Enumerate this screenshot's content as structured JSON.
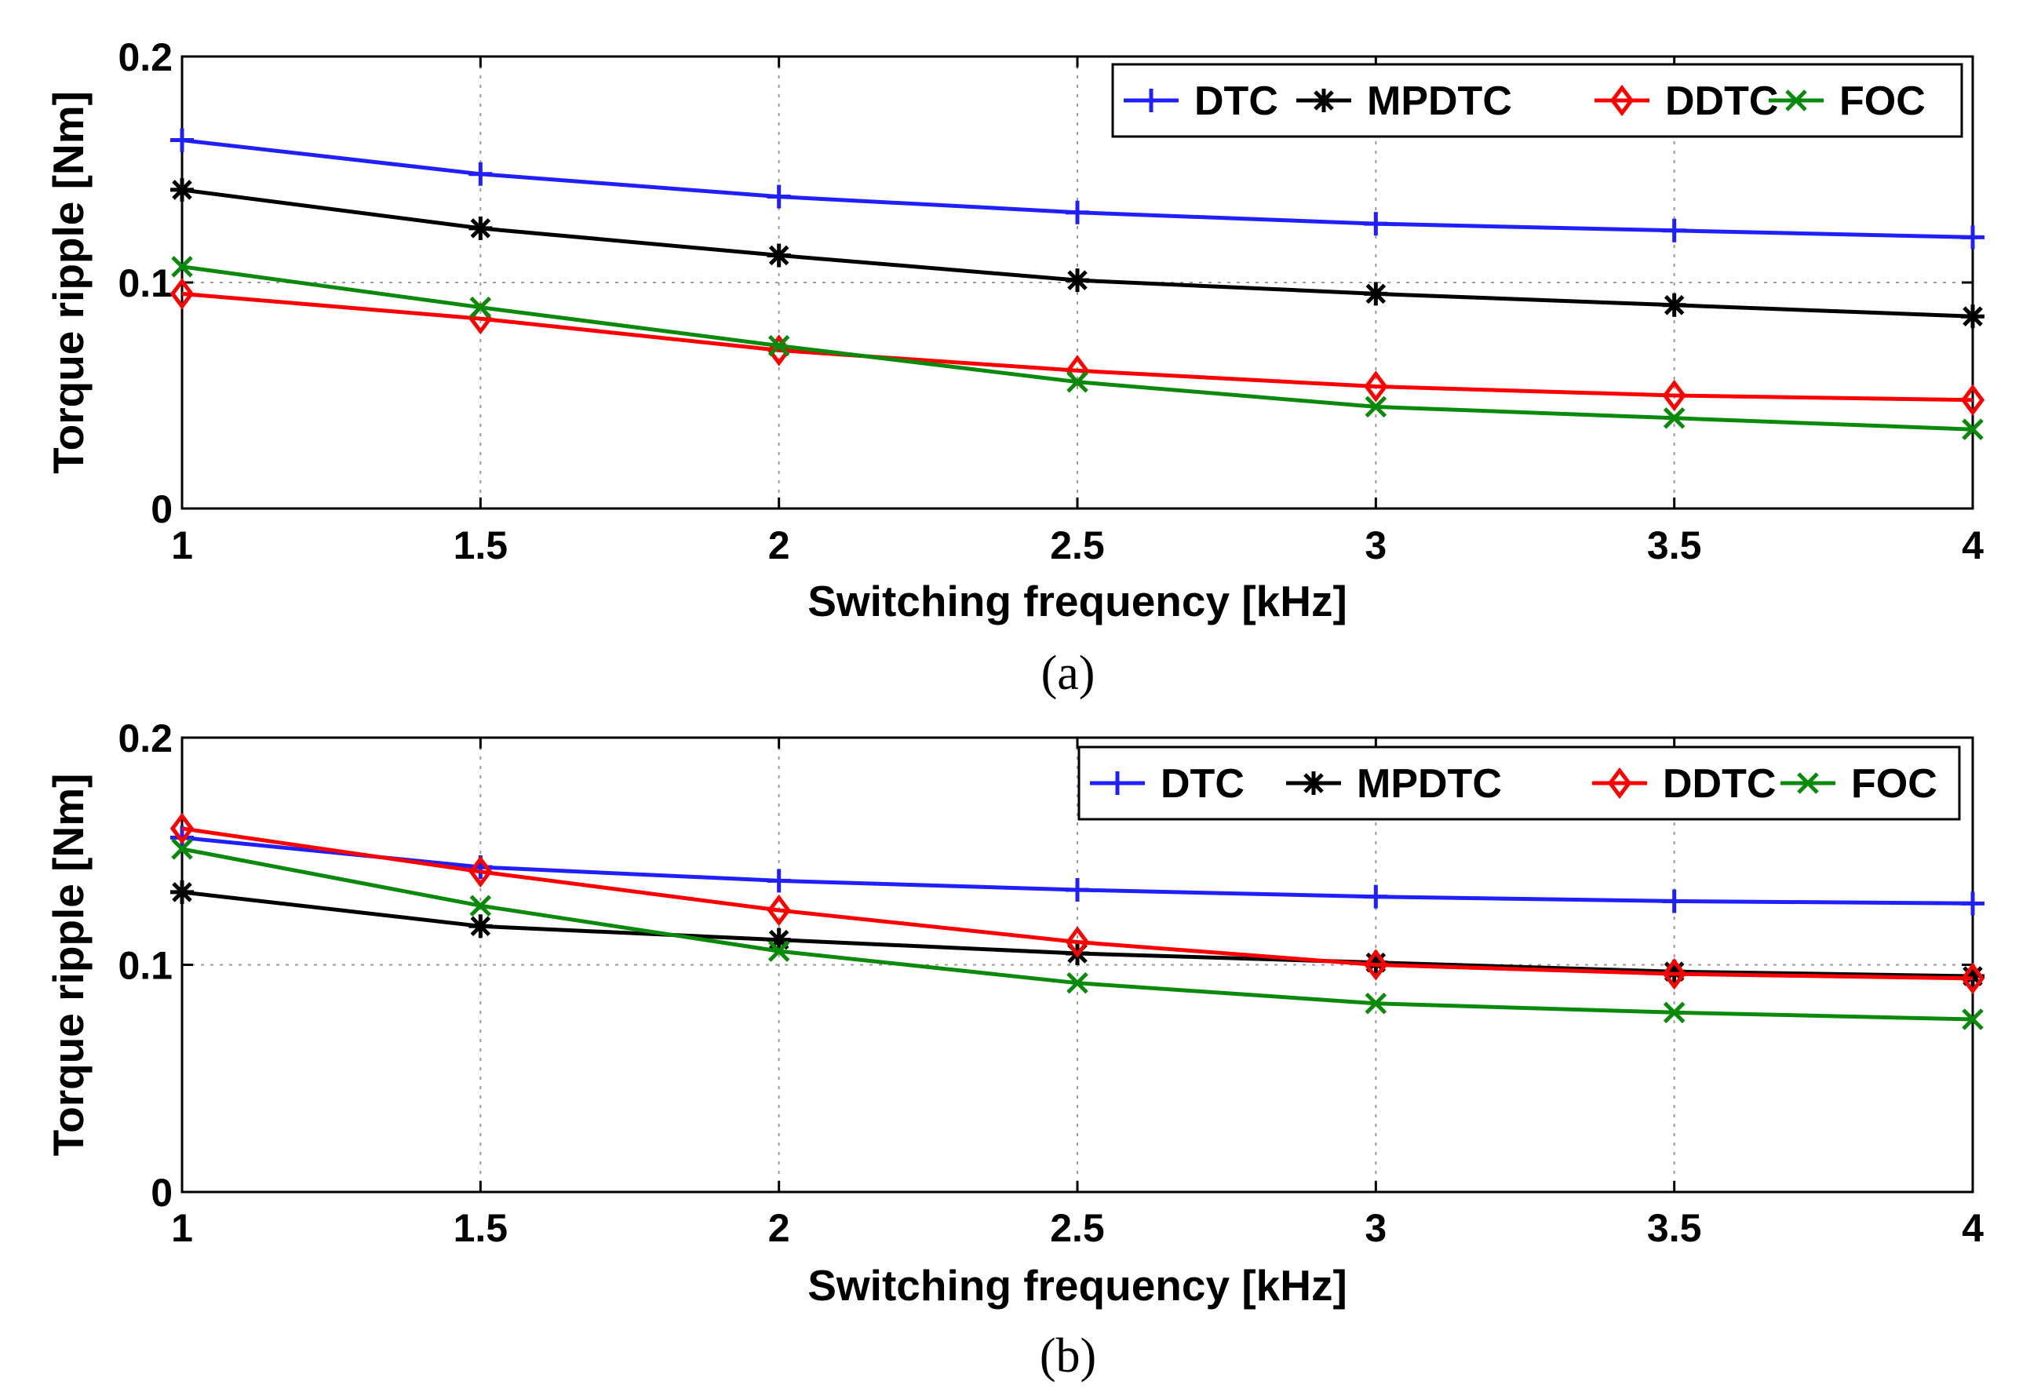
{
  "chart_data": [
    {
      "id": "a",
      "type": "line",
      "caption": "(a)",
      "xlabel": "Switching frequency [kHz]",
      "ylabel": "Torque ripple [Nm]",
      "x": [
        1,
        1.5,
        2,
        2.5,
        3,
        3.5,
        4
      ],
      "x_tick_labels": [
        "1",
        "1.5",
        "2",
        "2.5",
        "3",
        "3.5",
        "4"
      ],
      "y_ticks": [
        0,
        0.1,
        0.2
      ],
      "y_tick_labels": [
        "0",
        "0.1",
        "0.2"
      ],
      "xlim": [
        1,
        4
      ],
      "ylim": [
        0,
        0.2
      ],
      "grid": true,
      "legend_position": "top-right",
      "series": [
        {
          "name": "DTC",
          "color": "#1f1fff",
          "marker": "plus",
          "values": [
            0.163,
            0.148,
            0.138,
            0.131,
            0.126,
            0.123,
            0.12
          ]
        },
        {
          "name": "MPDTC",
          "color": "#000000",
          "marker": "star",
          "values": [
            0.141,
            0.124,
            0.112,
            0.101,
            0.095,
            0.09,
            0.085
          ]
        },
        {
          "name": "DDTC",
          "color": "#ff0000",
          "marker": "diamond",
          "values": [
            0.095,
            0.084,
            0.07,
            0.061,
            0.054,
            0.05,
            0.048
          ]
        },
        {
          "name": "FOC",
          "color": "#0a8a0a",
          "marker": "x",
          "values": [
            0.107,
            0.089,
            0.072,
            0.056,
            0.045,
            0.04,
            0.035
          ]
        }
      ]
    },
    {
      "id": "b",
      "type": "line",
      "caption": "(b)",
      "xlabel": "Switching frequency [kHz]",
      "ylabel": "Torque ripple [Nm]",
      "x": [
        1,
        1.5,
        2,
        2.5,
        3,
        3.5,
        4
      ],
      "x_tick_labels": [
        "1",
        "1.5",
        "2",
        "2.5",
        "3",
        "3.5",
        "4"
      ],
      "y_ticks": [
        0,
        0.1,
        0.2
      ],
      "y_tick_labels": [
        "0",
        "0.1",
        "0.2"
      ],
      "xlim": [
        1,
        4
      ],
      "ylim": [
        0,
        0.2
      ],
      "grid": true,
      "legend_position": "top-right",
      "series": [
        {
          "name": "DTC",
          "color": "#1f1fff",
          "marker": "plus",
          "values": [
            0.156,
            0.143,
            0.137,
            0.133,
            0.13,
            0.128,
            0.127
          ]
        },
        {
          "name": "MPDTC",
          "color": "#000000",
          "marker": "star",
          "values": [
            0.132,
            0.117,
            0.111,
            0.105,
            0.101,
            0.097,
            0.095
          ]
        },
        {
          "name": "DDTC",
          "color": "#ff0000",
          "marker": "diamond",
          "values": [
            0.16,
            0.141,
            0.124,
            0.11,
            0.1,
            0.096,
            0.094
          ]
        },
        {
          "name": "FOC",
          "color": "#0a8a0a",
          "marker": "x",
          "values": [
            0.151,
            0.126,
            0.106,
            0.092,
            0.083,
            0.079,
            0.076
          ]
        }
      ]
    }
  ]
}
